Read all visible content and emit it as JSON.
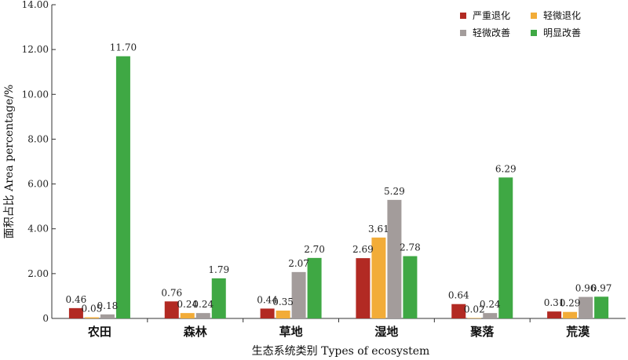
{
  "chart_data": {
    "type": "bar",
    "categories": [
      "农田",
      "森林",
      "草地",
      "湿地",
      "聚落",
      "荒漠"
    ],
    "series": [
      {
        "name": "严重退化",
        "color": "#b22a23",
        "values": [
          0.46,
          0.76,
          0.44,
          2.69,
          0.64,
          0.31
        ],
        "labels": [
          "0.46",
          "0.76",
          "0.44",
          "2.69",
          "0.64",
          "0.31"
        ]
      },
      {
        "name": "轻微退化",
        "color": "#f2ac38",
        "values": [
          0.05,
          0.24,
          0.35,
          3.61,
          0.02,
          0.29
        ],
        "labels": [
          "0.05",
          "0.24",
          "0.35",
          "3.61",
          "0.02",
          "0.29"
        ]
      },
      {
        "name": "轻微改善",
        "color": "#a39c9b",
        "values": [
          0.18,
          0.24,
          2.07,
          5.29,
          0.24,
          0.96
        ],
        "labels": [
          "0.18",
          "0.24",
          "2.07",
          "5.29",
          "0.24",
          "0.96"
        ]
      },
      {
        "name": "明显改善",
        "color": "#3fa844",
        "values": [
          11.7,
          1.79,
          2.7,
          2.78,
          6.29,
          0.97
        ],
        "labels": [
          "11.70",
          "1.79",
          "2.70",
          "2.78",
          "6.29",
          "0.97"
        ]
      }
    ],
    "xlabel": "生态系统类别 Types of ecosystem",
    "ylabel": "面积占比 Area percentage/%",
    "ylim": [
      0,
      14
    ],
    "yticks": [
      "0",
      "2.00",
      "4.00",
      "6.00",
      "8.00",
      "10.00",
      "12.00",
      "14.00"
    ],
    "grid": false,
    "legend_position": "top-right"
  }
}
